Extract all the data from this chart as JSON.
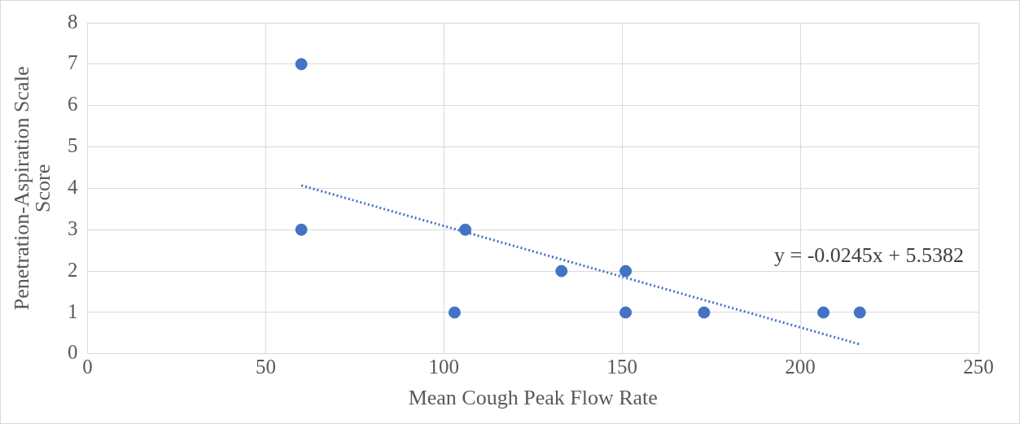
{
  "chart_data": {
    "type": "scatter",
    "xlabel": "Mean Cough Peak Flow Rate",
    "ylabel": "Penetration-Aspiration Scale Score",
    "xlim": [
      0,
      250
    ],
    "xticks": [
      0,
      50,
      100,
      150,
      200,
      250
    ],
    "ylim": [
      0,
      8
    ],
    "yticks": [
      0,
      1,
      2,
      3,
      4,
      5,
      6,
      7,
      8
    ],
    "grid": true,
    "legend": false,
    "marker": "circle",
    "annotations": [
      "y = -0.0245x + 5.5382"
    ],
    "series": [
      {
        "color": "#4472c4",
        "x": [
          60,
          60,
          103,
          106,
          133,
          151,
          151,
          173,
          206.5,
          216.7
        ],
        "values": [
          7,
          3,
          1,
          3,
          2,
          2,
          1,
          1,
          1,
          1
        ]
      },
      {
        "type": "line",
        "color": "#4472c4",
        "line_style": "dotted",
        "marker": "none",
        "x": [
          60,
          216.7
        ],
        "values": [
          4.07,
          0.23
        ]
      }
    ]
  }
}
